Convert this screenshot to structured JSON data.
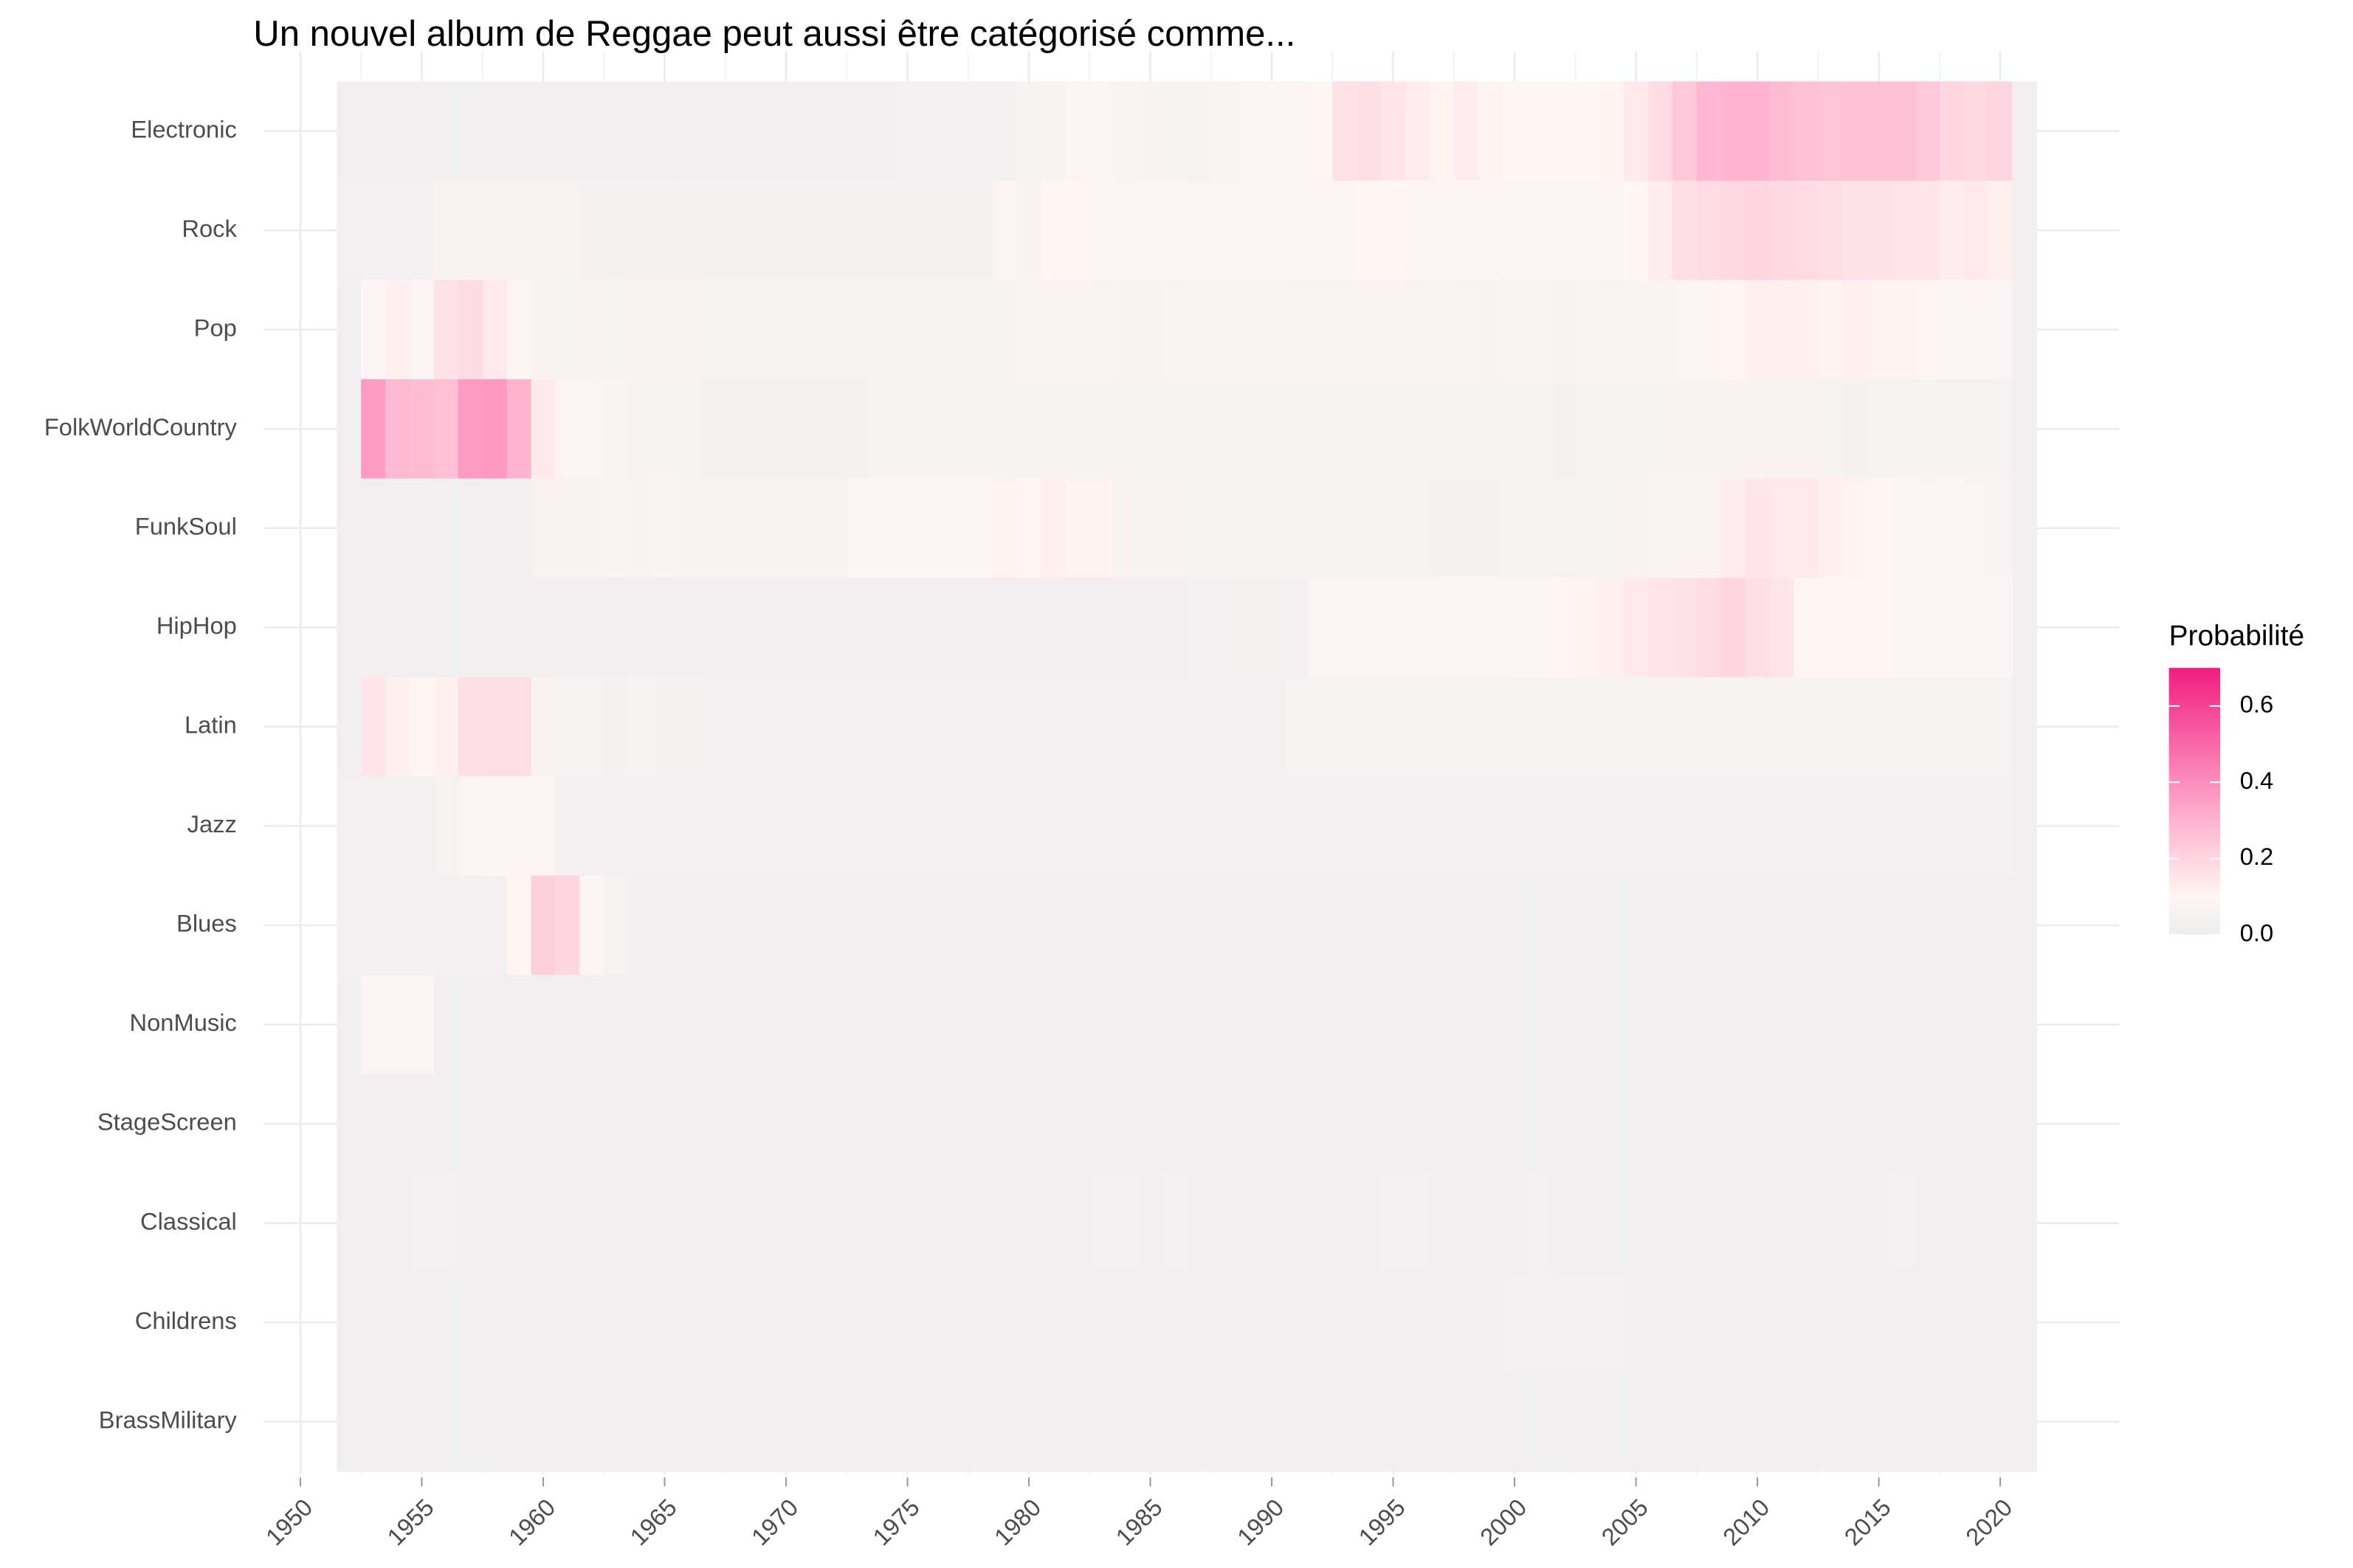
{
  "chart_data": {
    "type": "heatmap",
    "title": "Un nouvel album de Reggae  peut aussi être catégorisé comme...",
    "legend_title": "Probabilité",
    "x": [
      1952,
      1953,
      1954,
      1955,
      1956,
      1957,
      1958,
      1959,
      1960,
      1961,
      1962,
      1963,
      1964,
      1965,
      1966,
      1967,
      1968,
      1969,
      1970,
      1971,
      1972,
      1973,
      1974,
      1975,
      1976,
      1977,
      1978,
      1979,
      1980,
      1981,
      1982,
      1983,
      1984,
      1985,
      1986,
      1987,
      1988,
      1989,
      1990,
      1991,
      1992,
      1993,
      1994,
      1995,
      1996,
      1997,
      1998,
      1999,
      2000,
      2001,
      2002,
      2003,
      2004,
      2005,
      2006,
      2007,
      2008,
      2009,
      2010,
      2011,
      2012,
      2013,
      2014,
      2015,
      2016,
      2017,
      2018,
      2019,
      2020,
      2021
    ],
    "xlim": [
      1948.5,
      2024.9
    ],
    "xticks": [
      1950,
      1955,
      1960,
      1965,
      1970,
      1975,
      1980,
      1985,
      1990,
      1995,
      2000,
      2005,
      2010,
      2015,
      2020
    ],
    "grid": true,
    "colorscale": [
      [
        0,
        "#EDEDEF"
      ],
      [
        0.1,
        "#FFF6F3"
      ],
      [
        0.3,
        "#FFB3CF"
      ],
      [
        0.7,
        "#F21C80"
      ]
    ],
    "colorbar_lim": [
      0,
      0.7
    ],
    "colorbar_ticks": [
      {
        "value": 0,
        "label": "0.0"
      },
      {
        "value": 0.2,
        "label": "0.2"
      },
      {
        "value": 0.4,
        "label": "0.4"
      },
      {
        "value": 0.6,
        "label": "0.6"
      }
    ],
    "series": [
      {
        "name": "Electronic",
        "values": [
          0.02,
          0.02,
          0.02,
          0.02,
          0.02,
          0.02,
          0.02,
          0.02,
          0.02,
          0.02,
          0.02,
          0.02,
          0.02,
          0.02,
          0.02,
          0.02,
          0.02,
          0.02,
          0.02,
          0.02,
          0.02,
          0.02,
          0.02,
          0.03,
          0.03,
          0.03,
          0.03,
          0.03,
          0.05,
          0.06,
          0.08,
          0.08,
          0.07,
          0.06,
          0.05,
          0.05,
          0.07,
          0.08,
          0.08,
          0.09,
          0.1,
          0.16,
          0.17,
          0.15,
          0.13,
          0.11,
          0.13,
          0.11,
          0.1,
          0.1,
          0.1,
          0.1,
          0.11,
          0.14,
          0.18,
          0.24,
          0.29,
          0.3,
          0.3,
          0.27,
          0.26,
          0.25,
          0.26,
          0.26,
          0.26,
          0.24,
          0.2,
          0.19,
          0.2,
          0.02
        ]
      },
      {
        "name": "Rock",
        "values": [
          0.03,
          0.03,
          0.03,
          0.03,
          0.06,
          0.06,
          0.06,
          0.06,
          0.06,
          0.06,
          0.04,
          0.04,
          0.04,
          0.04,
          0.04,
          0.04,
          0.04,
          0.04,
          0.04,
          0.04,
          0.04,
          0.04,
          0.04,
          0.04,
          0.04,
          0.04,
          0.04,
          0.08,
          0.06,
          0.1,
          0.1,
          0.09,
          0.08,
          0.08,
          0.09,
          0.08,
          0.08,
          0.08,
          0.08,
          0.09,
          0.09,
          0.09,
          0.1,
          0.1,
          0.09,
          0.08,
          0.09,
          0.08,
          0.08,
          0.08,
          0.08,
          0.08,
          0.09,
          0.1,
          0.13,
          0.17,
          0.18,
          0.19,
          0.2,
          0.19,
          0.18,
          0.17,
          0.16,
          0.16,
          0.15,
          0.15,
          0.13,
          0.14,
          0.12,
          0.02
        ]
      },
      {
        "name": "Pop",
        "values": [
          0.02,
          0.09,
          0.12,
          0.09,
          0.16,
          0.18,
          0.14,
          0.09,
          0.06,
          0.05,
          0.06,
          0.05,
          0.06,
          0.06,
          0.06,
          0.05,
          0.05,
          0.05,
          0.05,
          0.05,
          0.05,
          0.05,
          0.05,
          0.05,
          0.05,
          0.05,
          0.05,
          0.05,
          0.07,
          0.07,
          0.07,
          0.07,
          0.06,
          0.06,
          0.07,
          0.07,
          0.07,
          0.07,
          0.07,
          0.07,
          0.07,
          0.07,
          0.07,
          0.07,
          0.07,
          0.07,
          0.07,
          0.06,
          0.07,
          0.07,
          0.06,
          0.07,
          0.07,
          0.07,
          0.07,
          0.08,
          0.08,
          0.1,
          0.12,
          0.12,
          0.12,
          0.11,
          0.12,
          0.11,
          0.11,
          0.1,
          0.09,
          0.09,
          0.08,
          0.02
        ]
      },
      {
        "name": "FolkWorldCountry",
        "values": [
          0.02,
          0.36,
          0.28,
          0.27,
          0.26,
          0.36,
          0.37,
          0.3,
          0.14,
          0.08,
          0.08,
          0.07,
          0.05,
          0.05,
          0.05,
          0.04,
          0.04,
          0.04,
          0.04,
          0.04,
          0.04,
          0.04,
          0.05,
          0.05,
          0.05,
          0.05,
          0.05,
          0.05,
          0.05,
          0.05,
          0.05,
          0.05,
          0.05,
          0.05,
          0.05,
          0.05,
          0.05,
          0.05,
          0.05,
          0.05,
          0.05,
          0.05,
          0.05,
          0.05,
          0.05,
          0.05,
          0.05,
          0.05,
          0.05,
          0.05,
          0.04,
          0.05,
          0.05,
          0.05,
          0.05,
          0.06,
          0.06,
          0.06,
          0.06,
          0.06,
          0.06,
          0.05,
          0.04,
          0.05,
          0.05,
          0.05,
          0.05,
          0.05,
          0.05,
          0.02
        ]
      },
      {
        "name": "FunkSoul",
        "values": [
          0.02,
          0.02,
          0.02,
          0.02,
          0.02,
          0.02,
          0.02,
          0.02,
          0.06,
          0.06,
          0.06,
          0.07,
          0.06,
          0.07,
          0.06,
          0.06,
          0.06,
          0.06,
          0.06,
          0.06,
          0.06,
          0.09,
          0.09,
          0.09,
          0.09,
          0.09,
          0.09,
          0.11,
          0.1,
          0.12,
          0.11,
          0.11,
          0.06,
          0.06,
          0.06,
          0.05,
          0.05,
          0.05,
          0.05,
          0.05,
          0.05,
          0.05,
          0.05,
          0.05,
          0.05,
          0.04,
          0.04,
          0.04,
          0.05,
          0.05,
          0.05,
          0.05,
          0.05,
          0.06,
          0.07,
          0.07,
          0.07,
          0.13,
          0.15,
          0.14,
          0.14,
          0.12,
          0.11,
          0.1,
          0.09,
          0.08,
          0.09,
          0.08,
          0.07,
          0.02
        ]
      },
      {
        "name": "HipHop",
        "values": [
          0.02,
          0.02,
          0.02,
          0.02,
          0.02,
          0.02,
          0.02,
          0.02,
          0.02,
          0.02,
          0.02,
          0.02,
          0.02,
          0.02,
          0.02,
          0.02,
          0.02,
          0.02,
          0.02,
          0.02,
          0.02,
          0.02,
          0.02,
          0.02,
          0.02,
          0.02,
          0.02,
          0.02,
          0.02,
          0.02,
          0.02,
          0.02,
          0.02,
          0.02,
          0.02,
          0.03,
          0.03,
          0.04,
          0.04,
          0.03,
          0.08,
          0.08,
          0.08,
          0.08,
          0.08,
          0.08,
          0.08,
          0.08,
          0.09,
          0.09,
          0.1,
          0.11,
          0.12,
          0.14,
          0.15,
          0.16,
          0.18,
          0.2,
          0.17,
          0.15,
          0.1,
          0.1,
          0.1,
          0.1,
          0.09,
          0.09,
          0.09,
          0.09,
          0.09,
          0.02
        ]
      },
      {
        "name": "Latin",
        "values": [
          0.02,
          0.15,
          0.12,
          0.1,
          0.12,
          0.17,
          0.17,
          0.17,
          0.06,
          0.05,
          0.05,
          0.04,
          0.05,
          0.04,
          0.04,
          0.03,
          0.03,
          0.03,
          0.03,
          0.03,
          0.03,
          0.03,
          0.03,
          0.03,
          0.03,
          0.03,
          0.03,
          0.03,
          0.03,
          0.03,
          0.03,
          0.03,
          0.03,
          0.03,
          0.03,
          0.03,
          0.03,
          0.03,
          0.03,
          0.05,
          0.05,
          0.05,
          0.05,
          0.05,
          0.05,
          0.05,
          0.05,
          0.05,
          0.05,
          0.05,
          0.05,
          0.05,
          0.05,
          0.05,
          0.05,
          0.05,
          0.05,
          0.05,
          0.05,
          0.05,
          0.05,
          0.05,
          0.05,
          0.05,
          0.05,
          0.05,
          0.05,
          0.05,
          0.05,
          0.02
        ]
      },
      {
        "name": "Jazz",
        "values": [
          0.03,
          0.03,
          0.03,
          0.03,
          0.05,
          0.08,
          0.09,
          0.09,
          0.08,
          0.03,
          0.03,
          0.03,
          0.03,
          0.03,
          0.03,
          0.03,
          0.03,
          0.03,
          0.03,
          0.03,
          0.03,
          0.03,
          0.03,
          0.03,
          0.03,
          0.03,
          0.03,
          0.03,
          0.03,
          0.03,
          0.03,
          0.03,
          0.03,
          0.03,
          0.03,
          0.03,
          0.03,
          0.03,
          0.03,
          0.03,
          0.03,
          0.03,
          0.03,
          0.03,
          0.03,
          0.03,
          0.03,
          0.03,
          0.03,
          0.03,
          0.03,
          0.03,
          0.03,
          0.03,
          0.03,
          0.03,
          0.03,
          0.03,
          0.03,
          0.03,
          0.03,
          0.03,
          0.03,
          0.03,
          0.03,
          0.03,
          0.03,
          0.03,
          0.03,
          0.02
        ]
      },
      {
        "name": "Blues",
        "values": [
          0.03,
          0.03,
          0.03,
          0.03,
          0.03,
          0.03,
          0.03,
          0.1,
          0.22,
          0.2,
          0.08,
          0.05,
          0.02,
          0.02,
          0.02,
          0.02,
          0.02,
          0.02,
          0.02,
          0.02,
          0.02,
          0.02,
          0.02,
          0.02,
          0.02,
          0.02,
          0.02,
          0.02,
          0.02,
          0.02,
          0.02,
          0.02,
          0.02,
          0.02,
          0.02,
          0.02,
          0.02,
          0.02,
          0.02,
          0.02,
          0.02,
          0.02,
          0.02,
          0.02,
          0.02,
          0.02,
          0.02,
          0.02,
          0.02,
          0.02,
          0.02,
          0.02,
          0.02,
          0.02,
          0.02,
          0.02,
          0.02,
          0.02,
          0.02,
          0.02,
          0.02,
          0.02,
          0.02,
          0.02,
          0.02,
          0.02,
          0.02,
          0.02,
          0.02,
          0.02
        ]
      },
      {
        "name": "NonMusic",
        "values": [
          0.02,
          0.08,
          0.08,
          0.08,
          0.02,
          0.02,
          0.02,
          0.02,
          0.02,
          0.02,
          0.02,
          0.02,
          0.02,
          0.02,
          0.02,
          0.02,
          0.02,
          0.02,
          0.02,
          0.02,
          0.02,
          0.02,
          0.02,
          0.02,
          0.02,
          0.02,
          0.02,
          0.02,
          0.02,
          0.02,
          0.02,
          0.02,
          0.02,
          0.02,
          0.02,
          0.02,
          0.02,
          0.02,
          0.02,
          0.02,
          0.02,
          0.02,
          0.02,
          0.02,
          0.02,
          0.02,
          0.02,
          0.02,
          0.02,
          0.02,
          0.02,
          0.02,
          0.02,
          0.02,
          0.02,
          0.02,
          0.02,
          0.02,
          0.02,
          0.02,
          0.02,
          0.02,
          0.02,
          0.02,
          0.02,
          0.02,
          0.02,
          0.02,
          0.02,
          0.02
        ]
      },
      {
        "name": "StageScreen",
        "values": [
          0.02,
          0.02,
          0.02,
          0.02,
          0.02,
          0.02,
          0.02,
          0.02,
          0.02,
          0.02,
          0.02,
          0.02,
          0.02,
          0.02,
          0.02,
          0.02,
          0.02,
          0.02,
          0.02,
          0.02,
          0.02,
          0.02,
          0.02,
          0.02,
          0.02,
          0.02,
          0.02,
          0.02,
          0.02,
          0.02,
          0.02,
          0.02,
          0.02,
          0.02,
          0.02,
          0.02,
          0.02,
          0.02,
          0.02,
          0.02,
          0.02,
          0.02,
          0.02,
          0.02,
          0.02,
          0.02,
          0.02,
          0.02,
          0.02,
          0.02,
          0.02,
          0.02,
          0.02,
          0.02,
          0.02,
          0.02,
          0.02,
          0.02,
          0.02,
          0.02,
          0.02,
          0.02,
          0.02,
          0.02,
          0.02,
          0.02,
          0.02,
          0.02,
          0.02,
          0.02
        ]
      },
      {
        "name": "Classical",
        "values": [
          0.02,
          0.02,
          0.02,
          0.03,
          0.03,
          0.02,
          0.02,
          0.02,
          0.02,
          0.02,
          0.02,
          0.02,
          0.02,
          0.02,
          0.02,
          0.02,
          0.02,
          0.02,
          0.02,
          0.02,
          0.02,
          0.02,
          0.02,
          0.02,
          0.02,
          0.02,
          0.02,
          0.02,
          0.02,
          0.02,
          0.02,
          0.03,
          0.03,
          0.02,
          0.03,
          0.02,
          0.02,
          0.02,
          0.02,
          0.02,
          0.02,
          0.02,
          0.02,
          0.03,
          0.03,
          0.02,
          0.02,
          0.02,
          0.02,
          0.03,
          0.02,
          0.02,
          0.02,
          0.02,
          0.02,
          0.02,
          0.02,
          0.02,
          0.02,
          0.02,
          0.02,
          0.02,
          0.02,
          0.02,
          0.03,
          0.02,
          0.02,
          0.02,
          0.02,
          0.02
        ]
      },
      {
        "name": "Childrens",
        "values": [
          0.02,
          0.02,
          0.02,
          0.02,
          0.02,
          0.02,
          0.02,
          0.02,
          0.02,
          0.02,
          0.02,
          0.02,
          0.02,
          0.02,
          0.02,
          0.02,
          0.02,
          0.02,
          0.02,
          0.02,
          0.02,
          0.02,
          0.02,
          0.02,
          0.02,
          0.02,
          0.02,
          0.02,
          0.02,
          0.02,
          0.02,
          0.02,
          0.02,
          0.02,
          0.02,
          0.02,
          0.02,
          0.02,
          0.02,
          0.02,
          0.02,
          0.02,
          0.02,
          0.02,
          0.02,
          0.02,
          0.02,
          0.02,
          0.03,
          0.03,
          0.03,
          0.03,
          0.03,
          0.02,
          0.02,
          0.02,
          0.02,
          0.02,
          0.02,
          0.02,
          0.02,
          0.02,
          0.02,
          0.02,
          0.02,
          0.02,
          0.02,
          0.02,
          0.02,
          0.02
        ]
      },
      {
        "name": "BrassMilitary",
        "values": [
          0.02,
          0.02,
          0.02,
          0.02,
          0.02,
          0.02,
          0.02,
          0.02,
          0.02,
          0.02,
          0.02,
          0.02,
          0.02,
          0.02,
          0.02,
          0.02,
          0.02,
          0.02,
          0.02,
          0.02,
          0.02,
          0.02,
          0.02,
          0.02,
          0.02,
          0.02,
          0.02,
          0.02,
          0.02,
          0.02,
          0.02,
          0.02,
          0.02,
          0.02,
          0.02,
          0.02,
          0.02,
          0.02,
          0.02,
          0.02,
          0.02,
          0.02,
          0.02,
          0.02,
          0.02,
          0.02,
          0.02,
          0.02,
          0.02,
          0.02,
          0.02,
          0.02,
          0.02,
          0.02,
          0.02,
          0.02,
          0.02,
          0.02,
          0.02,
          0.02,
          0.02,
          0.02,
          0.02,
          0.02,
          0.02,
          0.02,
          0.02,
          0.02,
          0.02,
          0.02
        ]
      }
    ]
  }
}
